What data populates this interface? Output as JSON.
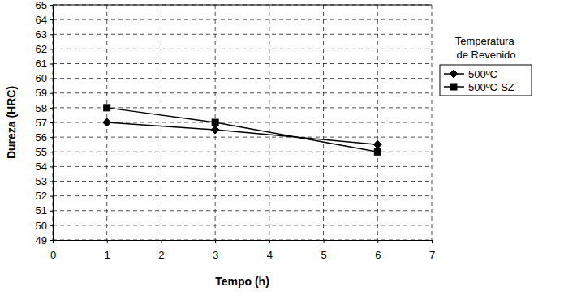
{
  "chart_data": {
    "type": "line",
    "x_label": "Tempo (h)",
    "y_label": "Dureza (HRC)",
    "legend_title": "Temperatura de Revenido",
    "legend": "right",
    "grid": true,
    "x": [
      1,
      3,
      6
    ],
    "xlim": [
      0,
      7
    ],
    "xticks": [
      0,
      1,
      2,
      3,
      4,
      5,
      6,
      7
    ],
    "ylim": [
      49,
      65
    ],
    "yticks": [
      49,
      50,
      51,
      52,
      53,
      54,
      55,
      56,
      57,
      58,
      59,
      60,
      61,
      62,
      63,
      64,
      65
    ],
    "series": [
      {
        "name": "500ºC",
        "color": "#000000",
        "marker": "diamond",
        "line_style": "solid",
        "values": [
          57,
          56.5,
          55.5
        ]
      },
      {
        "name": "500ºC-SZ",
        "color": "#000000",
        "marker": "square",
        "line_style": "solid",
        "values": [
          58,
          57,
          55
        ]
      }
    ]
  }
}
